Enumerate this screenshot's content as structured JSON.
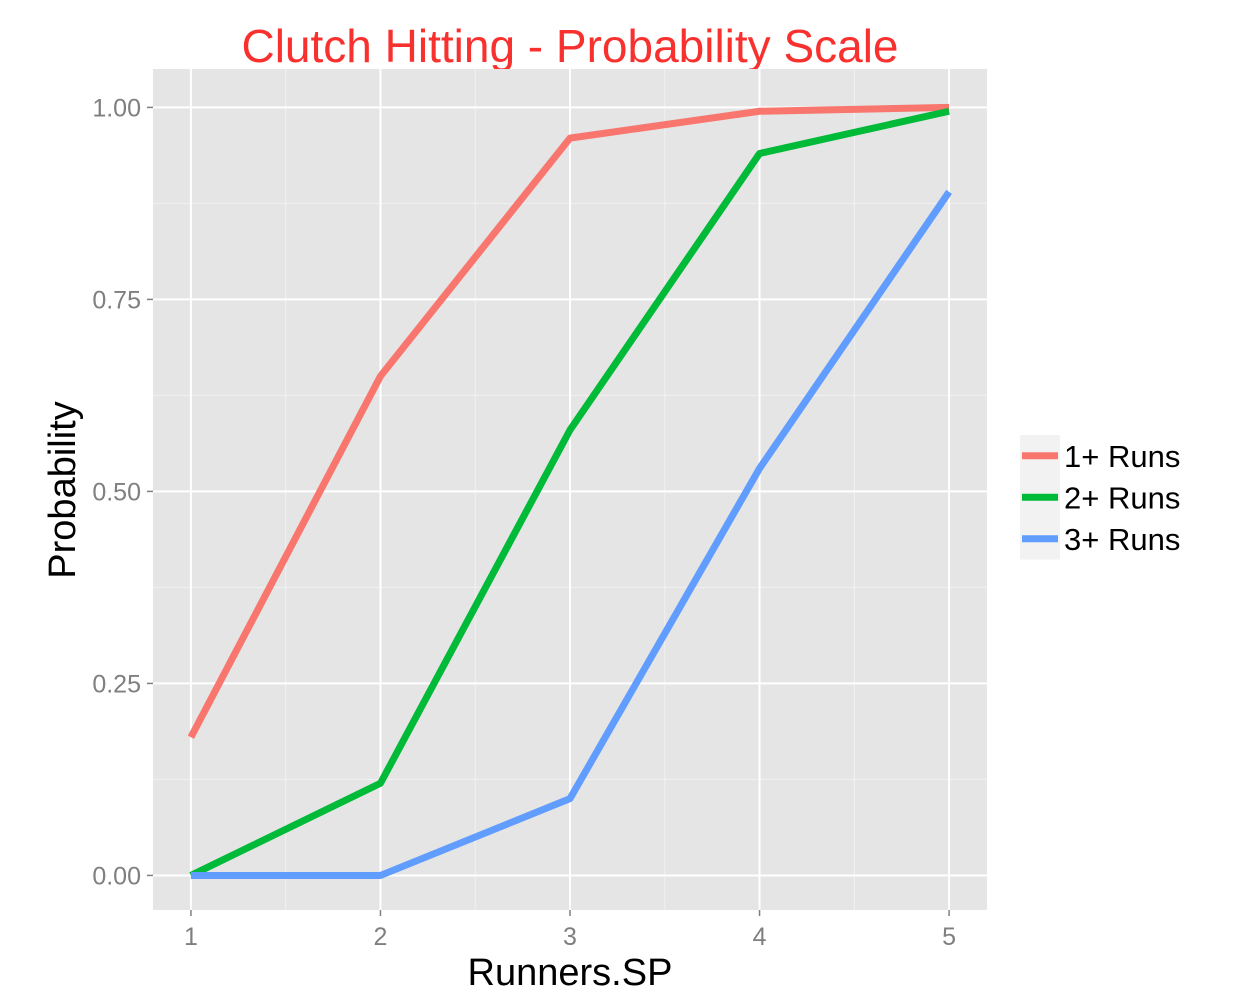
{
  "chart_data": {
    "type": "line",
    "title": "Clutch Hitting - Probability Scale",
    "title_color": "#F8312F",
    "xlabel": "Runners.SP",
    "ylabel": "Probability",
    "x": [
      1,
      2,
      3,
      4,
      5
    ],
    "xlim": [
      0.8,
      5.2
    ],
    "ylim": [
      -0.045,
      1.05
    ],
    "x_ticks": [
      "1",
      "2",
      "3",
      "4",
      "5"
    ],
    "y_ticks": [
      "0.00",
      "0.25",
      "0.50",
      "0.75",
      "1.00"
    ],
    "grid": true,
    "panel_background": "#E5E5E5",
    "legend_position": "right",
    "series": [
      {
        "name": "1+ Runs",
        "color": "#F8766D",
        "values": [
          0.18,
          0.65,
          0.96,
          0.995,
          1.0
        ]
      },
      {
        "name": "2+ Runs",
        "color": "#00BA38",
        "values": [
          0.0,
          0.12,
          0.58,
          0.94,
          0.995
        ]
      },
      {
        "name": "3+ Runs",
        "color": "#619CFF",
        "values": [
          0.0,
          0.0,
          0.1,
          0.53,
          0.89
        ]
      }
    ]
  }
}
